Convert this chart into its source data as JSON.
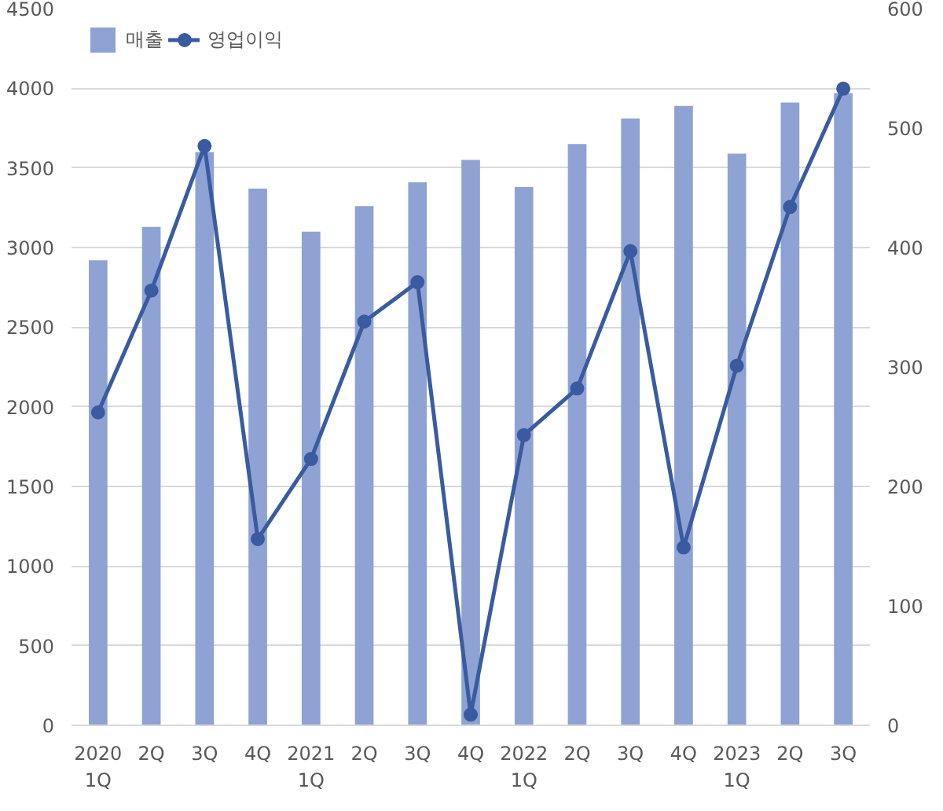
{
  "chart_data": {
    "type": "bar",
    "categories": [
      "2020\n1Q",
      "2Q",
      "3Q",
      "4Q",
      "2021\n1Q",
      "2Q",
      "3Q",
      "4Q",
      "2022\n1Q",
      "2Q",
      "3Q",
      "4Q",
      "2023\n1Q",
      "2Q",
      "3Q"
    ],
    "series": [
      {
        "name": "매출",
        "color": "#8fa2d4",
        "values": [
          2920,
          3130,
          3600,
          3370,
          3100,
          3260,
          3410,
          3550,
          3380,
          3650,
          3810,
          3890,
          3590,
          3910,
          3970
        ]
      },
      {
        "name": "영업이익",
        "type": "line",
        "axis": "y2",
        "color": "#3a5ba0",
        "marker": "circle",
        "line_style": "solid",
        "values": [
          262,
          364,
          485,
          156,
          223,
          338,
          371,
          9,
          243,
          282,
          397,
          149,
          301,
          434,
          533
        ]
      }
    ],
    "ylim": [
      0,
      4500
    ],
    "yticks": [
      0,
      500,
      1000,
      1500,
      2000,
      2500,
      3000,
      3500,
      4000,
      4500
    ],
    "y2lim": [
      0,
      600
    ],
    "y2ticks": [
      0,
      100,
      200,
      300,
      400,
      500,
      600
    ],
    "grid": "y",
    "legend": "top left"
  }
}
